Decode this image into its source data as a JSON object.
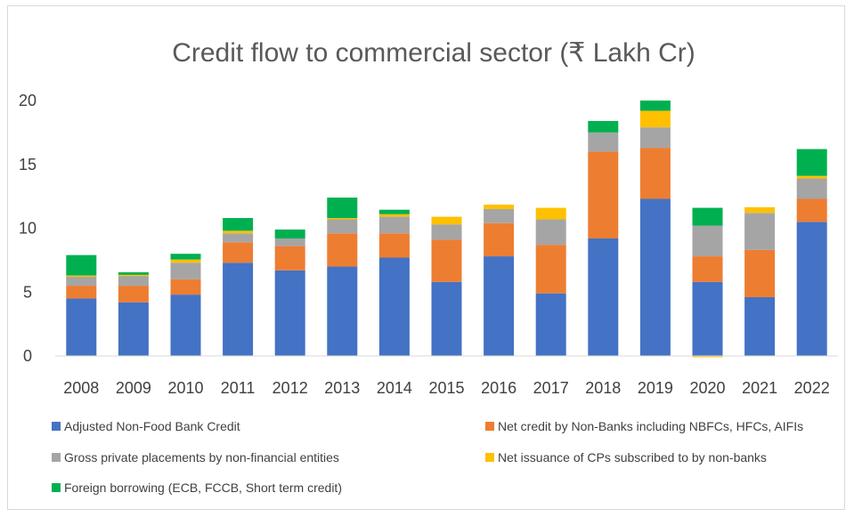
{
  "chart_data": {
    "type": "bar",
    "stacked": true,
    "title": "Credit flow to commercial sector (₹ Lakh Cr)",
    "xlabel": "",
    "ylabel": "",
    "categories": [
      "2008",
      "2009",
      "2010",
      "2011",
      "2012",
      "2013",
      "2014",
      "2015",
      "2016",
      "2017",
      "2018",
      "2019",
      "2020",
      "2021",
      "2022"
    ],
    "ylim": [
      0,
      20
    ],
    "yticks": [
      0,
      5,
      10,
      15,
      20
    ],
    "grid": false,
    "legend_position": "bottom",
    "series": [
      {
        "name": "Adjusted Non-Food Bank Credit",
        "color": "#4472C4",
        "values": [
          4.5,
          4.2,
          4.8,
          7.3,
          6.7,
          7.0,
          7.7,
          5.8,
          7.8,
          4.9,
          9.2,
          12.3,
          5.8,
          4.6,
          10.5
        ]
      },
      {
        "name": "Net credit by Non-Banks including NBFCs, HFCs, AIFIs",
        "color": "#ED7D31",
        "values": [
          1.0,
          1.3,
          1.2,
          1.6,
          1.9,
          2.6,
          1.9,
          3.3,
          2.6,
          3.8,
          6.8,
          4.0,
          2.0,
          3.7,
          1.8
        ]
      },
      {
        "name": "Gross private placements by non-financial entities",
        "color": "#A5A5A5",
        "values": [
          0.7,
          0.8,
          1.3,
          0.7,
          0.6,
          1.1,
          1.3,
          1.2,
          1.1,
          2.0,
          1.5,
          1.6,
          2.4,
          2.9,
          1.6
        ]
      },
      {
        "name": "Net issuance of CPs subscribed to by non-banks",
        "color": "#FFC000",
        "values": [
          0.1,
          0.05,
          0.25,
          0.2,
          0.0,
          0.1,
          0.2,
          0.6,
          0.35,
          0.9,
          0.0,
          1.3,
          -0.1,
          0.45,
          0.2
        ]
      },
      {
        "name": "Foreign borrowing (ECB, FCCB, Short term credit)",
        "color": "#00B050",
        "values": [
          1.6,
          0.2,
          0.45,
          1.0,
          0.7,
          1.6,
          0.35,
          0.0,
          0.0,
          0.0,
          0.9,
          0.8,
          1.4,
          0.0,
          2.1
        ]
      }
    ]
  }
}
